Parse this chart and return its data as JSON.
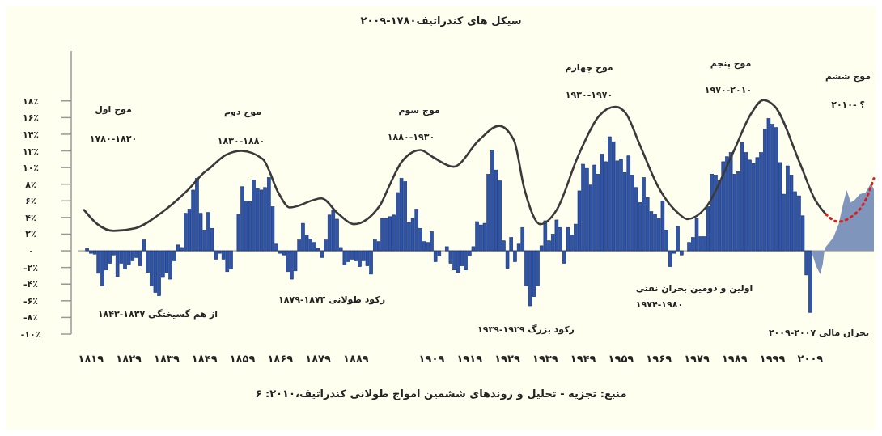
{
  "chart_data": {
    "type": "bar",
    "title": "سیکل های کندراتیف۱۷۸۰-۲۰۰۹",
    "xlim": [
      1815.5,
      2025.8
    ],
    "xticks": [
      {
        "value": 1819,
        "label": "۱۸۱۹"
      },
      {
        "value": 1829,
        "label": "۱۸۲۹"
      },
      {
        "value": 1839,
        "label": "۱۸۳۹"
      },
      {
        "value": 1849,
        "label": "۱۸۴۹"
      },
      {
        "value": 1859,
        "label": "۱۸۵۹"
      },
      {
        "value": 1869,
        "label": "۱۸۶۹"
      },
      {
        "value": 1879,
        "label": "۱۸۷۹"
      },
      {
        "value": 1889,
        "label": "۱۸۸۹"
      },
      {
        "value": 1909,
        "label": "۱۹۰۹"
      },
      {
        "value": 1919,
        "label": "۱۹۱۹"
      },
      {
        "value": 1929,
        "label": "۱۹۲۹"
      },
      {
        "value": 1939,
        "label": "۱۹۳۹"
      },
      {
        "value": 1949,
        "label": "۱۹۴۹"
      },
      {
        "value": 1959,
        "label": "۱۹۵۹"
      },
      {
        "value": 1969,
        "label": "۱۹۶۹"
      },
      {
        "value": 1979,
        "label": "۱۹۷۹"
      },
      {
        "value": 1989,
        "label": "۱۹۸۹"
      },
      {
        "value": 1999,
        "label": "۱۹۹۹"
      },
      {
        "value": 2009,
        "label": "۲۰۰۹"
      }
    ],
    "ylim": [
      -10,
      24
    ],
    "yticks": [
      {
        "value": -10,
        "label": "-۱۰٪"
      },
      {
        "value": -8,
        "label": "-۸٪"
      },
      {
        "value": -6,
        "label": "-۶٪"
      },
      {
        "value": -4,
        "label": "-۴٪"
      },
      {
        "value": -2,
        "label": "-۲٪"
      },
      {
        "value": 0,
        "label": "۰"
      },
      {
        "value": 2,
        "label": "۲٪"
      },
      {
        "value": 4,
        "label": "۴٪"
      },
      {
        "value": 6,
        "label": "۶٪"
      },
      {
        "value": 8,
        "label": "۸٪"
      },
      {
        "value": 10,
        "label": "۱۰٪"
      },
      {
        "value": 12,
        "label": "۱۲٪"
      },
      {
        "value": 14,
        "label": "۱۴٪"
      },
      {
        "value": 16,
        "label": "۱۶٪"
      },
      {
        "value": 18,
        "label": "۱۸٪"
      }
    ],
    "series": [
      {
        "color": "#2f55a8",
        "x": [
          1818,
          1819,
          1820,
          1821,
          1822,
          1823,
          1824,
          1825,
          1826,
          1827,
          1828,
          1829,
          1830,
          1831,
          1832,
          1833,
          1834,
          1835,
          1836,
          1837,
          1838,
          1839,
          1840,
          1841,
          1842,
          1843,
          1844,
          1845,
          1846,
          1847,
          1848,
          1849,
          1850,
          1851,
          1852,
          1853,
          1854,
          1855,
          1856,
          1857,
          1858,
          1859,
          1860,
          1861,
          1862,
          1863,
          1864,
          1865,
          1866,
          1867,
          1868,
          1869,
          1870,
          1871,
          1872,
          1873,
          1874,
          1875,
          1876,
          1877,
          1878,
          1879,
          1880,
          1881,
          1882,
          1883,
          1884,
          1885,
          1886,
          1887,
          1888,
          1889,
          1890,
          1891,
          1892,
          1893,
          1894,
          1895,
          1896,
          1897,
          1898,
          1899,
          1900,
          1901,
          1902,
          1903,
          1904,
          1905,
          1906,
          1907,
          1908,
          1909,
          1910,
          1911,
          1912,
          1913,
          1914,
          1915,
          1916,
          1917,
          1918,
          1919,
          1920,
          1921,
          1922,
          1923,
          1924,
          1925,
          1926,
          1927,
          1928,
          1929,
          1930,
          1931,
          1932,
          1933,
          1934,
          1935,
          1936,
          1937,
          1938,
          1939,
          1940,
          1941,
          1942,
          1943,
          1944,
          1945,
          1946,
          1947,
          1948,
          1949,
          1950,
          1951,
          1952,
          1953,
          1954,
          1955,
          1956,
          1957,
          1958,
          1959,
          1960,
          1961,
          1962,
          1963,
          1964,
          1965,
          1966,
          1967,
          1968,
          1969,
          1970,
          1971,
          1972,
          1973,
          1974,
          1975,
          1976,
          1977,
          1978,
          1979,
          1980,
          1981,
          1982,
          1983,
          1984,
          1985,
          1986,
          1987,
          1988,
          1989,
          1990,
          1991,
          1992,
          1993,
          1994,
          1995,
          1996,
          1997,
          1998,
          1999,
          2000,
          2001,
          2002,
          2003,
          2004,
          2005,
          2006,
          2007,
          2008,
          2009
        ],
        "values": [
          0.3,
          -0.3,
          -0.4,
          -2.7,
          -4.2,
          -2.3,
          -1.5,
          -0.5,
          -3.1,
          -1.5,
          -2.2,
          -1.7,
          -1.2,
          -0.8,
          -1.8,
          1.3,
          -2.6,
          -4.2,
          -5.0,
          -5.4,
          -3.2,
          -2.6,
          -3.4,
          -1.2,
          0.7,
          0.4,
          4.5,
          5.0,
          7.3,
          8.7,
          4.5,
          2.5,
          4.6,
          2.7,
          -1.0,
          -0.3,
          -1.0,
          -2.5,
          -2.2,
          0,
          4.4,
          7.7,
          6.0,
          5.9,
          8.5,
          7.5,
          7.3,
          7.6,
          8.8,
          5.3,
          0.8,
          -0.3,
          -0.5,
          -2.5,
          -3.4,
          -2.4,
          1.3,
          3.3,
          1.9,
          1.4,
          1.0,
          0.3,
          -0.8,
          1.3,
          4.3,
          4.9,
          3.8,
          0.4,
          -1.7,
          -1.3,
          -1.0,
          -1.2,
          -1.9,
          -1.2,
          -1.8,
          -2.8,
          1.3,
          1.1,
          3.9,
          3.9,
          4.1,
          4.3,
          7.0,
          8.7,
          8.3,
          3.4,
          3.9,
          5.0,
          2.7,
          1.1,
          1.0,
          2.3,
          -1.3,
          -0.6,
          0,
          0.5,
          -1.5,
          -2.3,
          -2.6,
          -1.8,
          -2.3,
          -0.6,
          0.5,
          3.5,
          3.1,
          3.3,
          9.2,
          12.1,
          9.7,
          8.4,
          1.2,
          -2.1,
          1.6,
          -1.3,
          0.8,
          2.8,
          -4.2,
          -6.6,
          -5.5,
          -4.2,
          0.6,
          3.6,
          1.2,
          2.0,
          3.7,
          2.8,
          -1.5,
          2.8,
          1.9,
          3.2,
          7.2,
          10.4,
          9.9,
          7.9,
          10.3,
          9.2,
          11.6,
          10.7,
          13.7,
          13.1,
          10.8,
          11.0,
          9.4,
          11.4,
          9.1,
          7.6,
          5.8,
          8.8,
          6.4,
          4.7,
          4.4,
          3.9,
          6.0,
          2.5,
          -1.9,
          -0.3,
          2.9,
          -0.5,
          0,
          1.0,
          1.6,
          3.9,
          1.7,
          1.7,
          5.3,
          9.2,
          9.1,
          8.4,
          10.7,
          11.3,
          11.8,
          9.2,
          9.5,
          13.0,
          11.8,
          10.9,
          10.5,
          11.2,
          11.8,
          14.6,
          15.9,
          15.2,
          14.8,
          10.6,
          6.8,
          10.2,
          9.1,
          7.1,
          6.6,
          4.2,
          -2.9,
          -7.4
        ]
      },
      {
        "type": "area",
        "color": "#8095bb",
        "x": [
          2009.6,
          2010.6,
          2011.6,
          2012.3,
          2012.8,
          2013.7,
          2015.1,
          2016.5,
          2017.6,
          2018.6,
          2019.7,
          2020.7,
          2022.1,
          2023.6,
          2025.0,
          2025.8
        ],
        "values": [
          -0.5,
          -1.9,
          -2.8,
          -1.6,
          0.3,
          0.8,
          1.6,
          3.2,
          5.5,
          7.3,
          5.8,
          6.1,
          6.8,
          7.0,
          8.1,
          7.4
        ]
      },
      {
        "type": "line",
        "color": "#3a3a3a",
        "line_style": "solid",
        "x": [
          1817.2,
          1820.7,
          1825,
          1830.6,
          1837.7,
          1842,
          1844.6,
          1848.9,
          1850.3,
          1854.6,
          1858.8,
          1864.4,
          1868.7,
          1871.5,
          1879.9,
          1884.2,
          1888.4,
          1895.4,
          1898,
          1901.1,
          1906,
          1909.5,
          1914.8,
          1921.5,
          1926.8,
          1930.7,
          1933.5,
          1937.7,
          1942,
          1947.6,
          1953.2,
          1957.5,
          1960.3,
          1963.8,
          1968.7,
          1974.4,
          1976.5,
          1981.4,
          1988.5,
          1993.4,
          1996.6,
          1999.7,
          2006.1,
          2010.3,
          2013.1
        ],
        "values": [
          4.9,
          3.2,
          2.4,
          2.7,
          4.6,
          6.2,
          7.3,
          9.4,
          9.9,
          11.5,
          12.0,
          11.0,
          6.8,
          5.2,
          6.3,
          4.5,
          3.2,
          5.5,
          8.0,
          10.7,
          12.1,
          11.2,
          10.1,
          13.3,
          15.0,
          13.3,
          7.4,
          3.2,
          4.9,
          11.3,
          16.2,
          17.3,
          16.5,
          12.9,
          7.8,
          4.4,
          3.8,
          5.2,
          11.7,
          16.5,
          18.1,
          17.3,
          10.7,
          6.1,
          4.4
        ]
      },
      {
        "type": "line",
        "color": "#d42020",
        "line_style": "dotted",
        "x": [
          2013.1,
          2016.3,
          2020.2,
          2023.8,
          2025.8
        ],
        "values": [
          4.4,
          3.5,
          4.2,
          6.3,
          8.7
        ]
      }
    ],
    "annotations": [
      "موج اول",
      "۱۷۸۰-۱۸۳۰",
      "موج دوم",
      "۱۸۳۰-۱۸۸۰",
      "موج سوم",
      "۱۸۸۰-۱۹۳۰",
      "موج چهارم",
      "۱۹۳۰-۱۹۷۰",
      "موج پنجم",
      "۱۹۷۰-۲۰۱۰",
      "موج ششم",
      "۲۰۱۰- ؟",
      "از هم گسیختگی ۱۸۳۷-۱۸۴۳",
      "رکود طولانی ۱۸۷۳-۱۸۷۹",
      "رکود بزرگ ۱۹۲۹-۱۹۳۹",
      "اولین و دومین بحران نفتی",
      "۱۹۷۴-۱۹۸۰",
      "بحران مالی ۲۰۰۷-۲۰۰۹",
      "منبع: تجزیه - تحلیل و روندهای ششمین امواج طولانی کندراتیف،۲۰۱۰: ۶"
    ]
  }
}
